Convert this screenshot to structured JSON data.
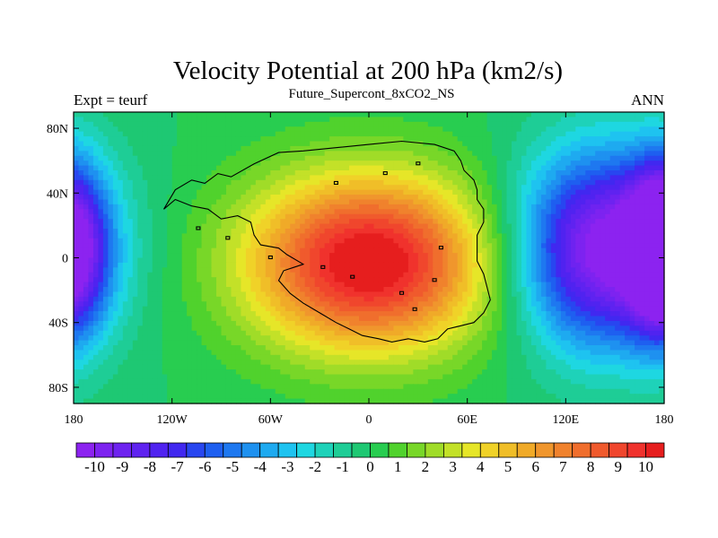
{
  "chart_data": {
    "type": "heatmap",
    "title": "Velocity Potential at 200 hPa (km2/s)",
    "subtitle": "Future_Supercont_8xCO2_NS",
    "left_label": "Expt = teurf",
    "right_label": "ANN",
    "x_ticks": [
      "180",
      "120W",
      "60W",
      "0",
      "60E",
      "120E",
      "180"
    ],
    "y_ticks": [
      "80N",
      "40N",
      "0",
      "40S",
      "80S"
    ],
    "colorbar_labels": [
      "-10",
      "-9",
      "-8",
      "-7",
      "-6",
      "-5",
      "-4",
      "-3",
      "-2",
      "-1",
      "0",
      "1",
      "2",
      "3",
      "4",
      "5",
      "6",
      "7",
      "8",
      "9",
      "10"
    ],
    "colorbar_colors": [
      "#8c23f0",
      "#7d23f0",
      "#6e23f0",
      "#5f23f0",
      "#5023f0",
      "#4128f0",
      "#2846f0",
      "#1e5ff0",
      "#1e78f0",
      "#1e91f0",
      "#1eaaf0",
      "#1ec3f0",
      "#1ed7e1",
      "#1ed2b9",
      "#1ecd96",
      "#1ec873",
      "#28cd50",
      "#50d22d",
      "#78d728",
      "#a0dc28",
      "#c3e128",
      "#e6e628",
      "#f0d228",
      "#f0be28",
      "#f0aa28",
      "#f0962d",
      "#f0822d",
      "#f06e2d",
      "#f05a2d",
      "#f0462d",
      "#f0322d",
      "#e61e1e"
    ],
    "value_range": [
      -11,
      11
    ],
    "lon_range": [
      -180,
      180
    ],
    "lat_range": [
      -90,
      90
    ],
    "field_features": {
      "max_center": {
        "lon": 0,
        "lat": -3,
        "value": 10
      },
      "min_center": {
        "lon": 145,
        "lat": 5,
        "value": -10
      },
      "secondary_min": {
        "lon": -180,
        "lat": 5,
        "value": -7
      }
    }
  }
}
